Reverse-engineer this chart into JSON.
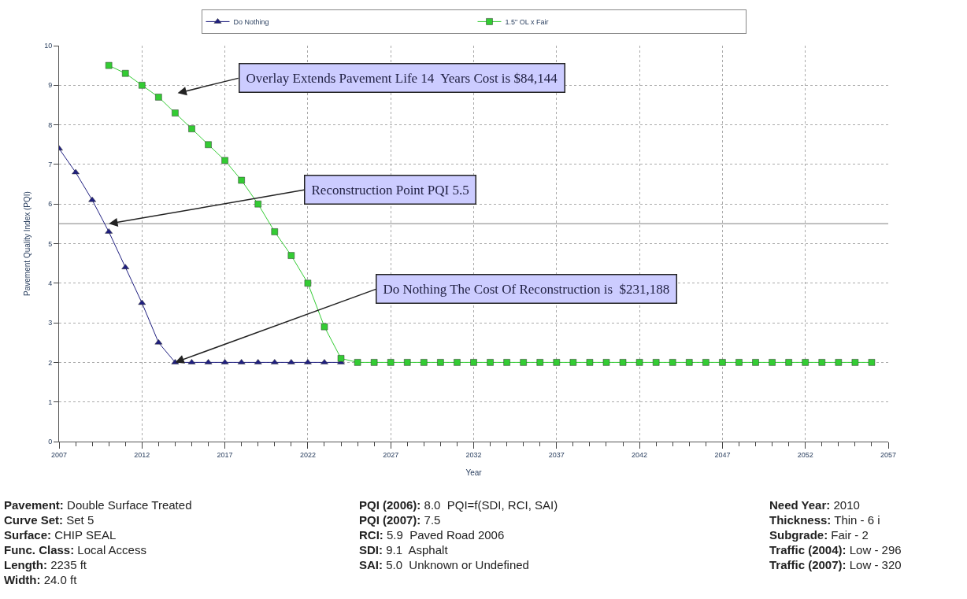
{
  "chart_data": {
    "type": "line",
    "xlabel": "Year",
    "ylabel": "Pavement Quality Index (PQI)",
    "x": [
      2007,
      2008,
      2009,
      2010,
      2011,
      2012,
      2013,
      2014,
      2015,
      2016,
      2017,
      2018,
      2019,
      2020,
      2021,
      2022,
      2023,
      2024
    ],
    "series": [
      {
        "name": "Do Nothing",
        "color": "#1f1f80",
        "marker": "triangle",
        "values": [
          7.4,
          6.8,
          6.1,
          5.3,
          4.4,
          3.5,
          2.5,
          2.0,
          2.0,
          2.0,
          2.0,
          2.0,
          2.0,
          2.0,
          2.0,
          2.0,
          2.0,
          2.0
        ]
      },
      {
        "name": "1.5\" OL x Fair",
        "color": "#33cc33",
        "marker": "square",
        "x": [
          2010,
          2011,
          2012,
          2013,
          2014,
          2015,
          2016,
          2017,
          2018,
          2019,
          2020,
          2021,
          2022,
          2023,
          2024,
          2025,
          2026,
          2027,
          2028,
          2029,
          2030,
          2031,
          2032,
          2033,
          2034,
          2035,
          2036,
          2037,
          2038,
          2039,
          2040,
          2041,
          2042,
          2043,
          2044,
          2045,
          2046,
          2047,
          2048,
          2049,
          2050,
          2051,
          2052,
          2053,
          2054,
          2055,
          2056
        ],
        "values": [
          9.5,
          9.3,
          9.0,
          8.7,
          8.3,
          7.9,
          7.5,
          7.1,
          6.6,
          6.0,
          5.3,
          4.7,
          4.0,
          2.9,
          2.1,
          2.0,
          2.0,
          2.0,
          2.0,
          2.0,
          2.0,
          2.0,
          2.0,
          2.0,
          2.0,
          2.0,
          2.0,
          2.0,
          2.0,
          2.0,
          2.0,
          2.0,
          2.0,
          2.0,
          2.0,
          2.0,
          2.0,
          2.0,
          2.0,
          2.0,
          2.0,
          2.0,
          2.0,
          2.0,
          2.0,
          2.0,
          2.0
        ]
      }
    ],
    "xlim": [
      2007,
      2057
    ],
    "xticks": [
      2007,
      2012,
      2017,
      2022,
      2027,
      2032,
      2037,
      2042,
      2047,
      2052,
      2057
    ],
    "ylim": [
      0,
      10
    ],
    "yticks": [
      0,
      1,
      2,
      3,
      4,
      5,
      6,
      7,
      8,
      9,
      10
    ],
    "grid": true,
    "legend": "top",
    "line_style": "solid",
    "ref_lines": [
      {
        "axis": "y",
        "value": 5.5,
        "color": "#aaaaaa"
      }
    ],
    "annotations": [
      "Overlay Extends Pavement Life 14  Years Cost is $84,144",
      {
        "text": "Reconstruction Point PQI 5.5",
        "x": 2010,
        "y": 5.5
      },
      {
        "text": "Do Nothing The Cost Of Reconstruction is  $231,188",
        "x": 2014,
        "y": 2.0
      },
      "Pavement: Double Surface Treated\nCurve Set: Set 5\nSurface: CHIP SEAL\nFunc. Class: Local Access\nLength: 2235 ft\nWidth: 24.0 ft",
      "PQI (2006): 8.0  PQI=f(SDI, RCI, SAI)\nPQI (2007): 7.5\nRCI: 5.9  Paved Road 2006\nSDI: 9.1  Asphalt\nSAI: 5.0  Unknown or Undefined",
      "Need Year: 2010\nThickness: Thin - 6 i\nSubgrade: Fair - 2\nTraffic (2004): Low - 296\nTraffic (2007): Low - 320"
    ]
  }
}
